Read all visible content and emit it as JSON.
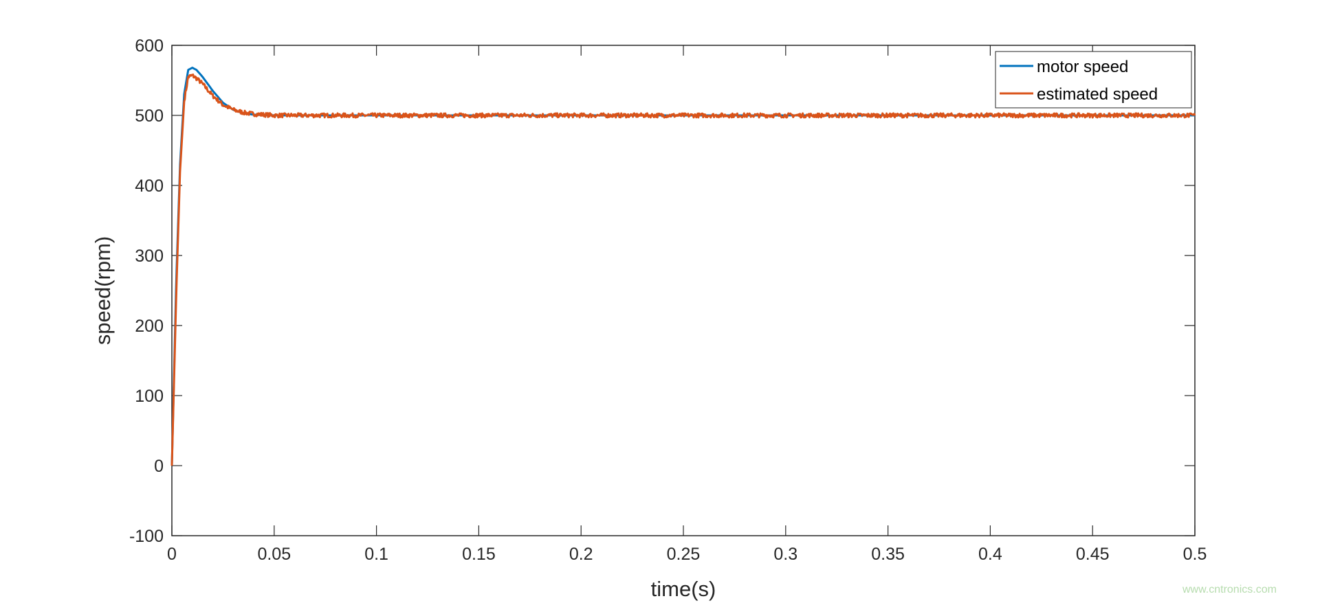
{
  "chart_data": {
    "type": "line",
    "title": "",
    "xlabel": "time(s)",
    "ylabel": "speed(rpm)",
    "xlim": [
      0,
      0.5
    ],
    "ylim": [
      -100,
      600
    ],
    "xticks": [
      "0",
      "0.05",
      "0.1",
      "0.15",
      "0.2",
      "0.25",
      "0.3",
      "0.35",
      "0.4",
      "0.45",
      "0.5"
    ],
    "yticks": [
      "-100",
      "0",
      "100",
      "200",
      "300",
      "400",
      "500",
      "600"
    ],
    "grid": false,
    "legend_position": "top-right",
    "series": [
      {
        "name": "motor speed",
        "color": "#0072BD",
        "x": [
          0,
          0.002,
          0.004,
          0.006,
          0.008,
          0.01,
          0.012,
          0.015,
          0.02,
          0.025,
          0.03,
          0.035,
          0.04,
          0.05,
          0.06,
          0.08,
          0.1,
          0.5
        ],
        "y": [
          0,
          250,
          430,
          530,
          565,
          568,
          565,
          555,
          535,
          518,
          508,
          503,
          501,
          500,
          500,
          500,
          500,
          500
        ]
      },
      {
        "name": "estimated speed",
        "color": "#D95319",
        "x": [
          0,
          0.002,
          0.004,
          0.006,
          0.008,
          0.01,
          0.012,
          0.015,
          0.02,
          0.025,
          0.03,
          0.035,
          0.04,
          0.05,
          0.06,
          0.08,
          0.1,
          0.5
        ],
        "y": [
          0,
          230,
          420,
          520,
          555,
          557,
          553,
          545,
          528,
          515,
          508,
          504,
          502,
          500,
          500,
          500,
          500,
          500
        ],
        "noise_amplitude_rpm": 3
      }
    ]
  },
  "watermark": "www.cntronics.com"
}
